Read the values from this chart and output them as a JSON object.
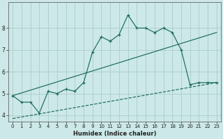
{
  "xlabel": "Humidex (Indice chaleur)",
  "background_color": "#cce8e8",
  "grid_color": "#aacccc",
  "line_color": "#1a6b5a",
  "xlim": [
    -0.5,
    23.5
  ],
  "ylim": [
    3.7,
    9.2
  ],
  "yticks": [
    4,
    5,
    6,
    7,
    8
  ],
  "xticks": [
    0,
    1,
    2,
    3,
    4,
    5,
    6,
    7,
    8,
    9,
    10,
    11,
    12,
    13,
    14,
    15,
    16,
    17,
    18,
    19,
    20,
    21,
    22,
    23
  ],
  "main_x": [
    0,
    1,
    2,
    3,
    4,
    5,
    6,
    7,
    8,
    9,
    10,
    11,
    12,
    13,
    14,
    15,
    16,
    17,
    18,
    19,
    20,
    21,
    22,
    23
  ],
  "main_y": [
    4.9,
    4.6,
    4.6,
    4.1,
    5.1,
    5.0,
    5.2,
    5.1,
    5.5,
    6.9,
    7.6,
    7.4,
    7.7,
    8.6,
    8.0,
    8.0,
    7.8,
    8.0,
    7.8,
    7.0,
    5.4,
    5.5,
    5.5,
    5.5
  ],
  "upper_line": {
    "x": [
      0,
      23
    ],
    "y": [
      4.9,
      7.8
    ]
  },
  "lower_line": {
    "x": [
      0,
      23
    ],
    "y": [
      3.85,
      5.5
    ]
  }
}
